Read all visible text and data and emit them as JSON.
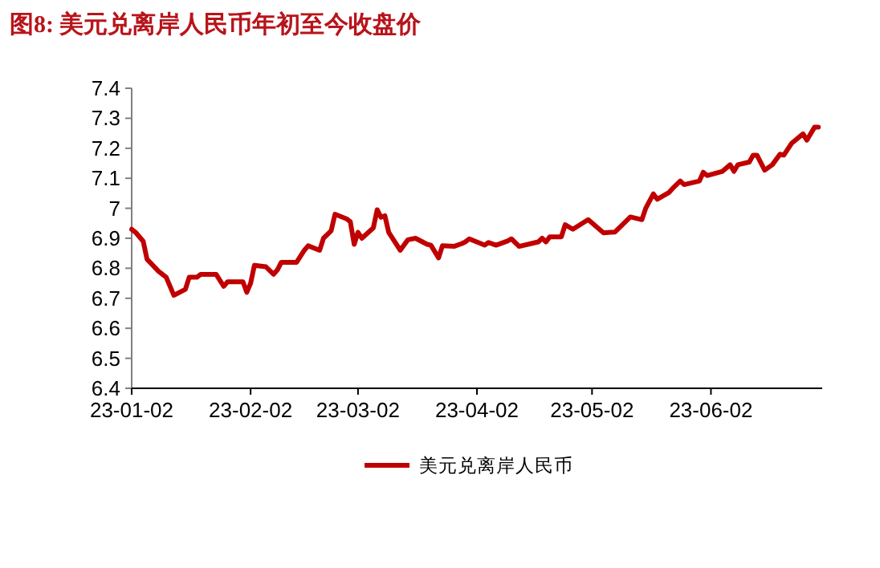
{
  "chart_data": {
    "type": "line",
    "title": "图8:  美元兑离岸人民币年初至今收盘价",
    "x": [
      "--01-02",
      "--01-03",
      "--01-05",
      "--01-06",
      "--01-09",
      "--01-10",
      "--01-11",
      "--01-13",
      "--01-16",
      "--01-17",
      "--01-19",
      "--01-20",
      "--01-23",
      "--01-24",
      "--01-26",
      "--01-27",
      "--01-31",
      "--02-01",
      "--02-02",
      "--02-03",
      "--02-06",
      "--02-08",
      "--02-09",
      "--02-10",
      "--02-14",
      "--02-16",
      "--02-17",
      "--02-20",
      "--02-21",
      "--02-23",
      "--02-24",
      "--02-27",
      "--02-28",
      "--03-01",
      "--03-02",
      "--03-03",
      "--03-06",
      "--03-07",
      "--03-08",
      "--03-09",
      "--03-10",
      "--03-13",
      "--03-15",
      "--03-17",
      "--03-20",
      "--03-21",
      "--03-23",
      "--03-24",
      "--03-27",
      "--03-29",
      "--03-30",
      "--03-31",
      "--04-04",
      "--04-05",
      "--04-07",
      "--04-10",
      "--04-11",
      "--04-13",
      "--04-16",
      "--04-18",
      "--04-19",
      "--04-20",
      "--04-21",
      "--04-24",
      "--04-25",
      "--04-27",
      "--05-01",
      "--05-05",
      "--05-08",
      "--05-12",
      "--05-15",
      "--05-16",
      "--05-18",
      "--05-19",
      "--05-22",
      "--05-23",
      "--05-25",
      "--05-26",
      "--05-30",
      "--05-31",
      "--06-01",
      "--06-05",
      "--06-07",
      "--06-08",
      "--06-09",
      "--06-12",
      "--06-13",
      "--06-14",
      "--06-16",
      "--06-18",
      "--06-20",
      "--06-21",
      "--06-23",
      "--06-26",
      "--06-27",
      "--06-29",
      "--06-30"
    ],
    "series": [
      {
        "name": "美元兑离岸人民币",
        "color": "#c00000",
        "values": [
          6.93,
          6.92,
          6.89,
          6.83,
          6.79,
          6.78,
          6.77,
          6.71,
          6.73,
          6.77,
          6.77,
          6.78,
          6.78,
          6.78,
          6.74,
          6.755,
          6.755,
          6.72,
          6.75,
          6.81,
          6.805,
          6.78,
          6.795,
          6.82,
          6.82,
          6.86,
          6.875,
          6.86,
          6.9,
          6.925,
          6.98,
          6.965,
          6.955,
          6.88,
          6.92,
          6.9,
          6.935,
          6.995,
          6.97,
          6.975,
          6.92,
          6.86,
          6.895,
          6.9,
          6.88,
          6.877,
          6.835,
          6.875,
          6.873,
          6.882,
          6.888,
          6.898,
          6.877,
          6.886,
          6.877,
          6.891,
          6.898,
          6.873,
          6.882,
          6.888,
          6.9,
          6.888,
          6.905,
          6.905,
          6.945,
          6.93,
          6.962,
          6.918,
          6.921,
          6.971,
          6.962,
          7.0,
          7.048,
          7.03,
          7.052,
          7.066,
          7.091,
          7.079,
          7.091,
          7.12,
          7.109,
          7.123,
          7.145,
          7.123,
          7.145,
          7.154,
          7.177,
          7.177,
          7.127,
          7.145,
          7.18,
          7.177,
          7.216,
          7.248,
          7.227,
          7.27,
          7.27
        ]
      }
    ],
    "xlim": [
      "--01-02",
      "--07-01"
    ],
    "xticks": [
      {
        "value": "--01-02",
        "label": "23-01-02"
      },
      {
        "value": "--02-02",
        "label": "23-02-02"
      },
      {
        "value": "--03-02",
        "label": "23-03-02"
      },
      {
        "value": "--04-02",
        "label": "23-04-02"
      },
      {
        "value": "--05-02",
        "label": "23-05-02"
      },
      {
        "value": "--06-02",
        "label": "23-06-02"
      }
    ],
    "ylim": [
      6.4,
      7.4
    ],
    "yticks": [
      6.4,
      6.5,
      6.6,
      6.7,
      6.8,
      6.9,
      7,
      7.1,
      7.2,
      7.3,
      7.4
    ],
    "legend": "bottom"
  }
}
